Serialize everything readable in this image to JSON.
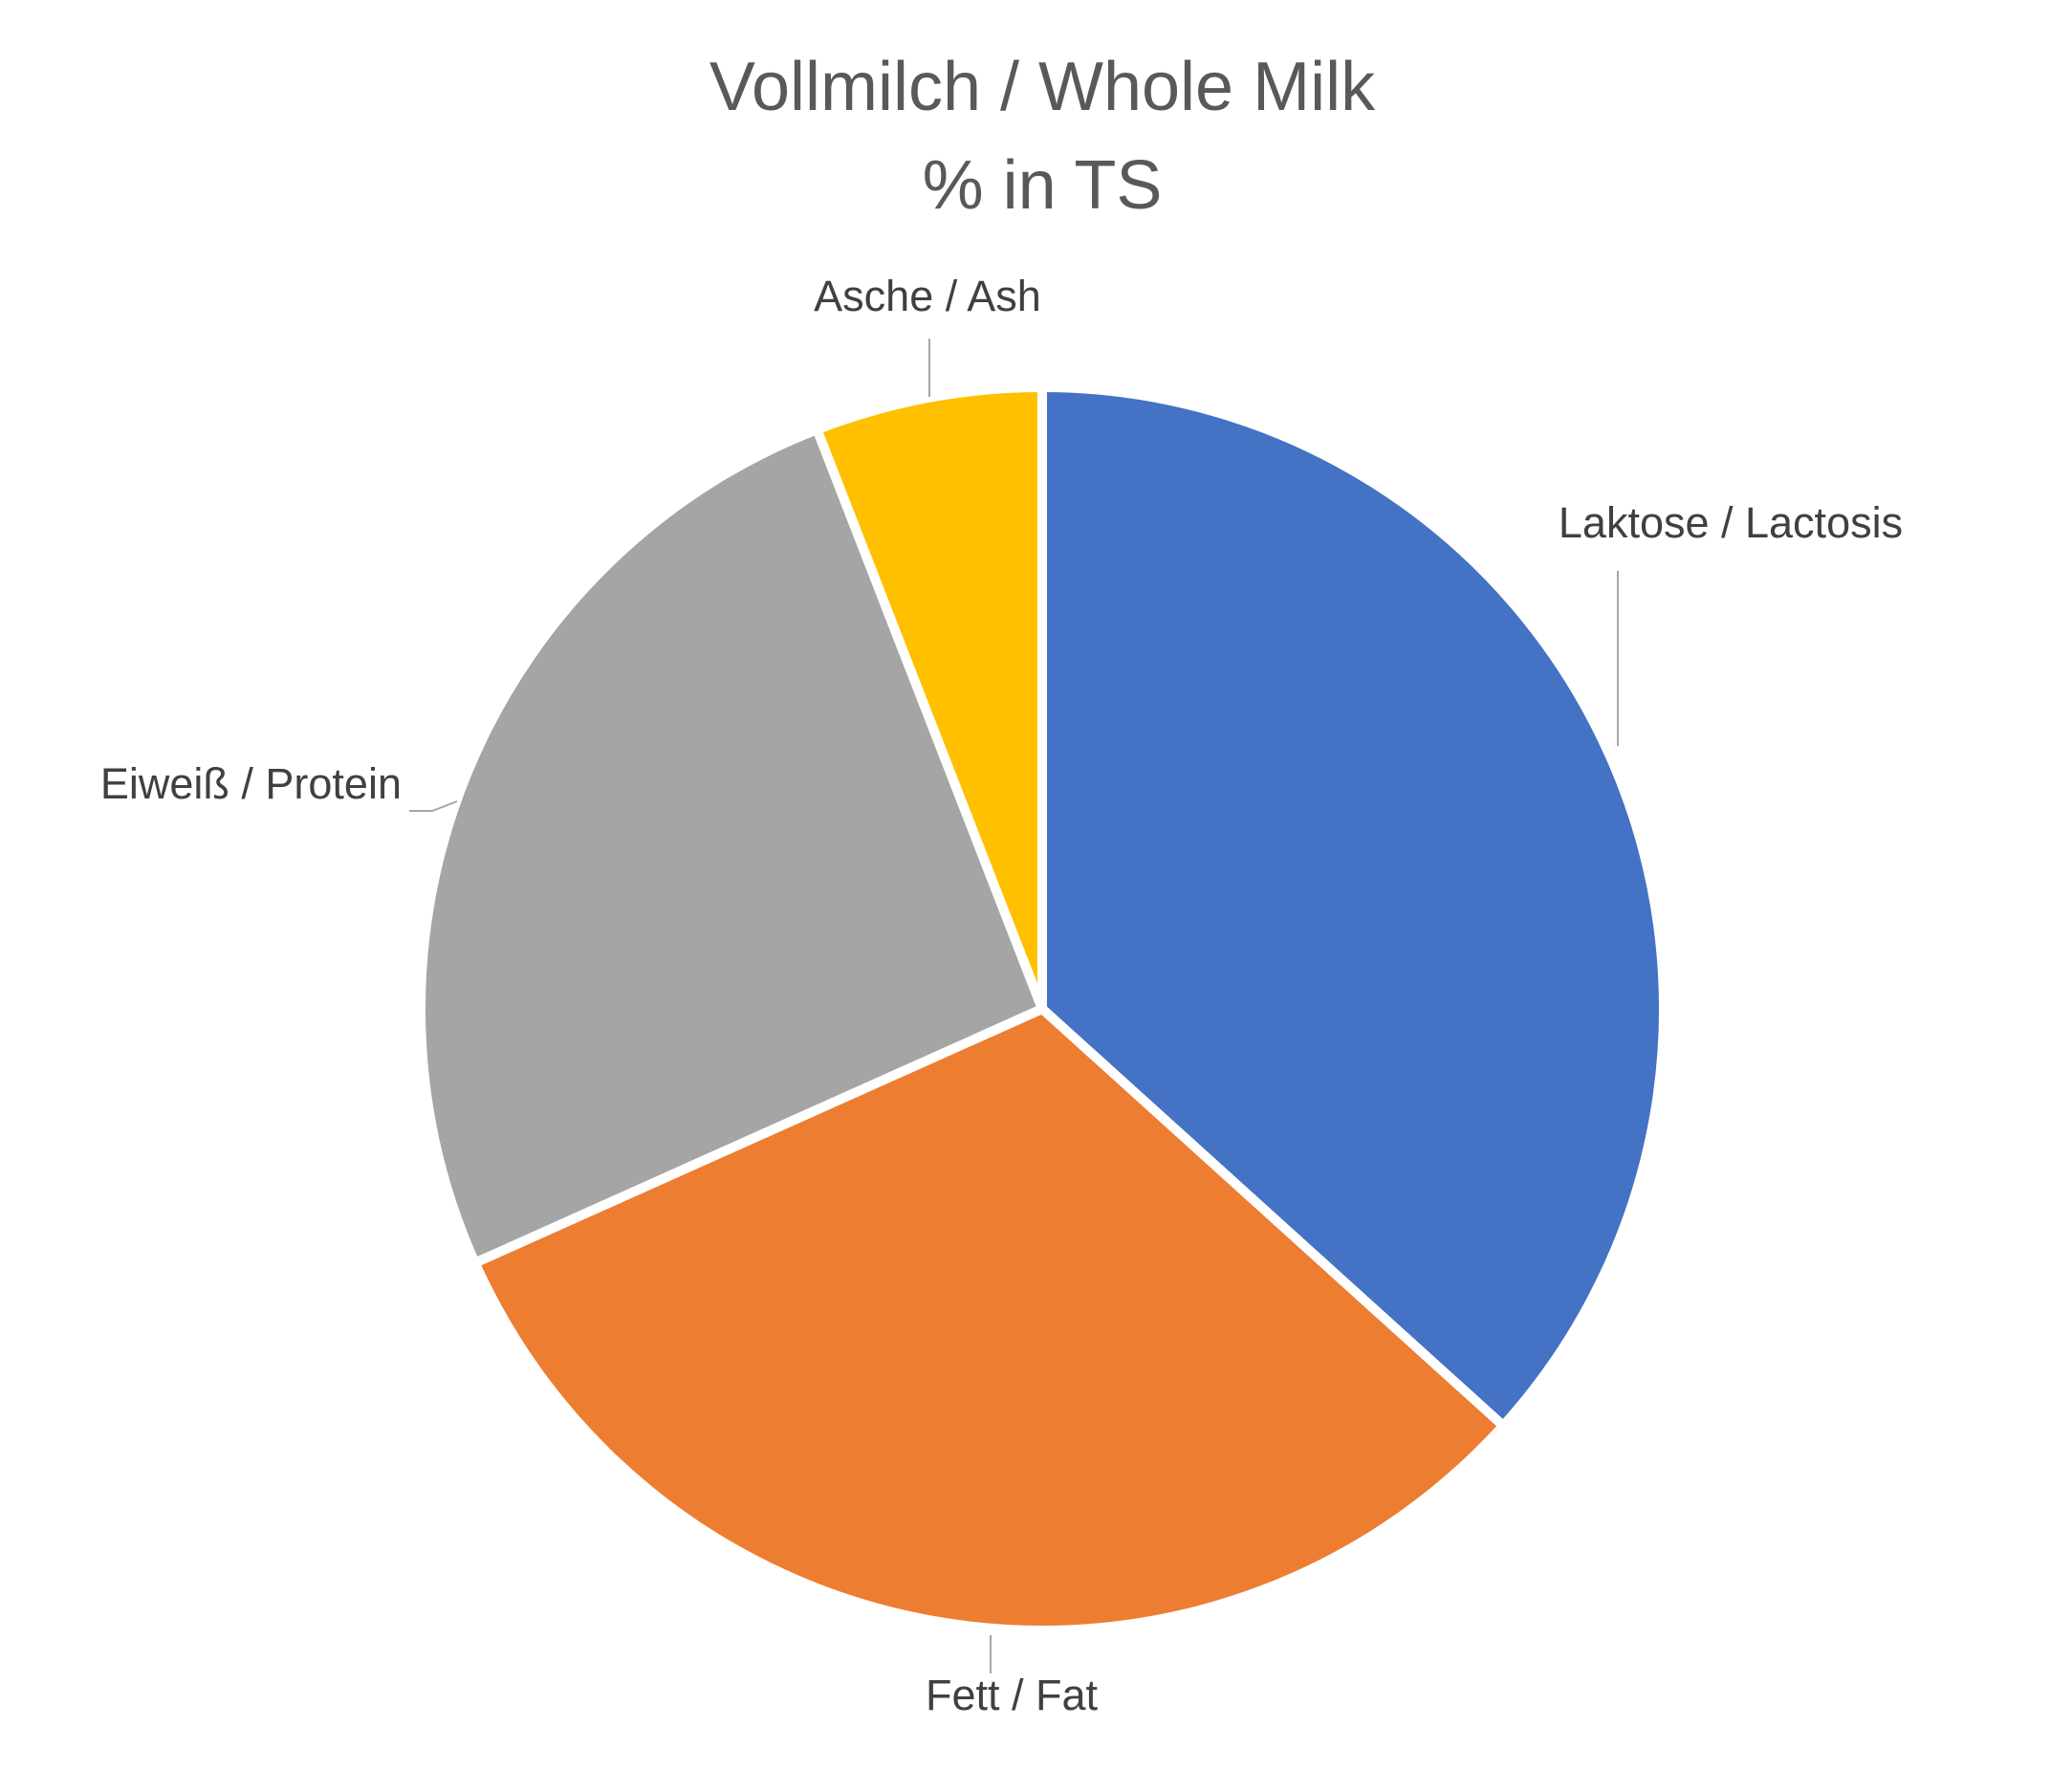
{
  "chart_data": {
    "type": "pie",
    "title": "Vollmilch / Whole Milk",
    "subtitle": "% in TS",
    "slices": [
      {
        "label": "Laktose / Lactosis",
        "value": 36.7,
        "color": "#4472C4"
      },
      {
        "label": "Fett / Fat",
        "value": 31.6,
        "color": "#ED7D31"
      },
      {
        "label": "Eiweiß / Protein",
        "value": 25.8,
        "color": "#A5A5A5"
      },
      {
        "label": "Asche / Ash",
        "value": 5.9,
        "color": "#FFC000"
      }
    ],
    "start_angle_deg": 0,
    "direction": "clockwise",
    "legend": "none",
    "data_labels": "category names outside with leader lines"
  }
}
